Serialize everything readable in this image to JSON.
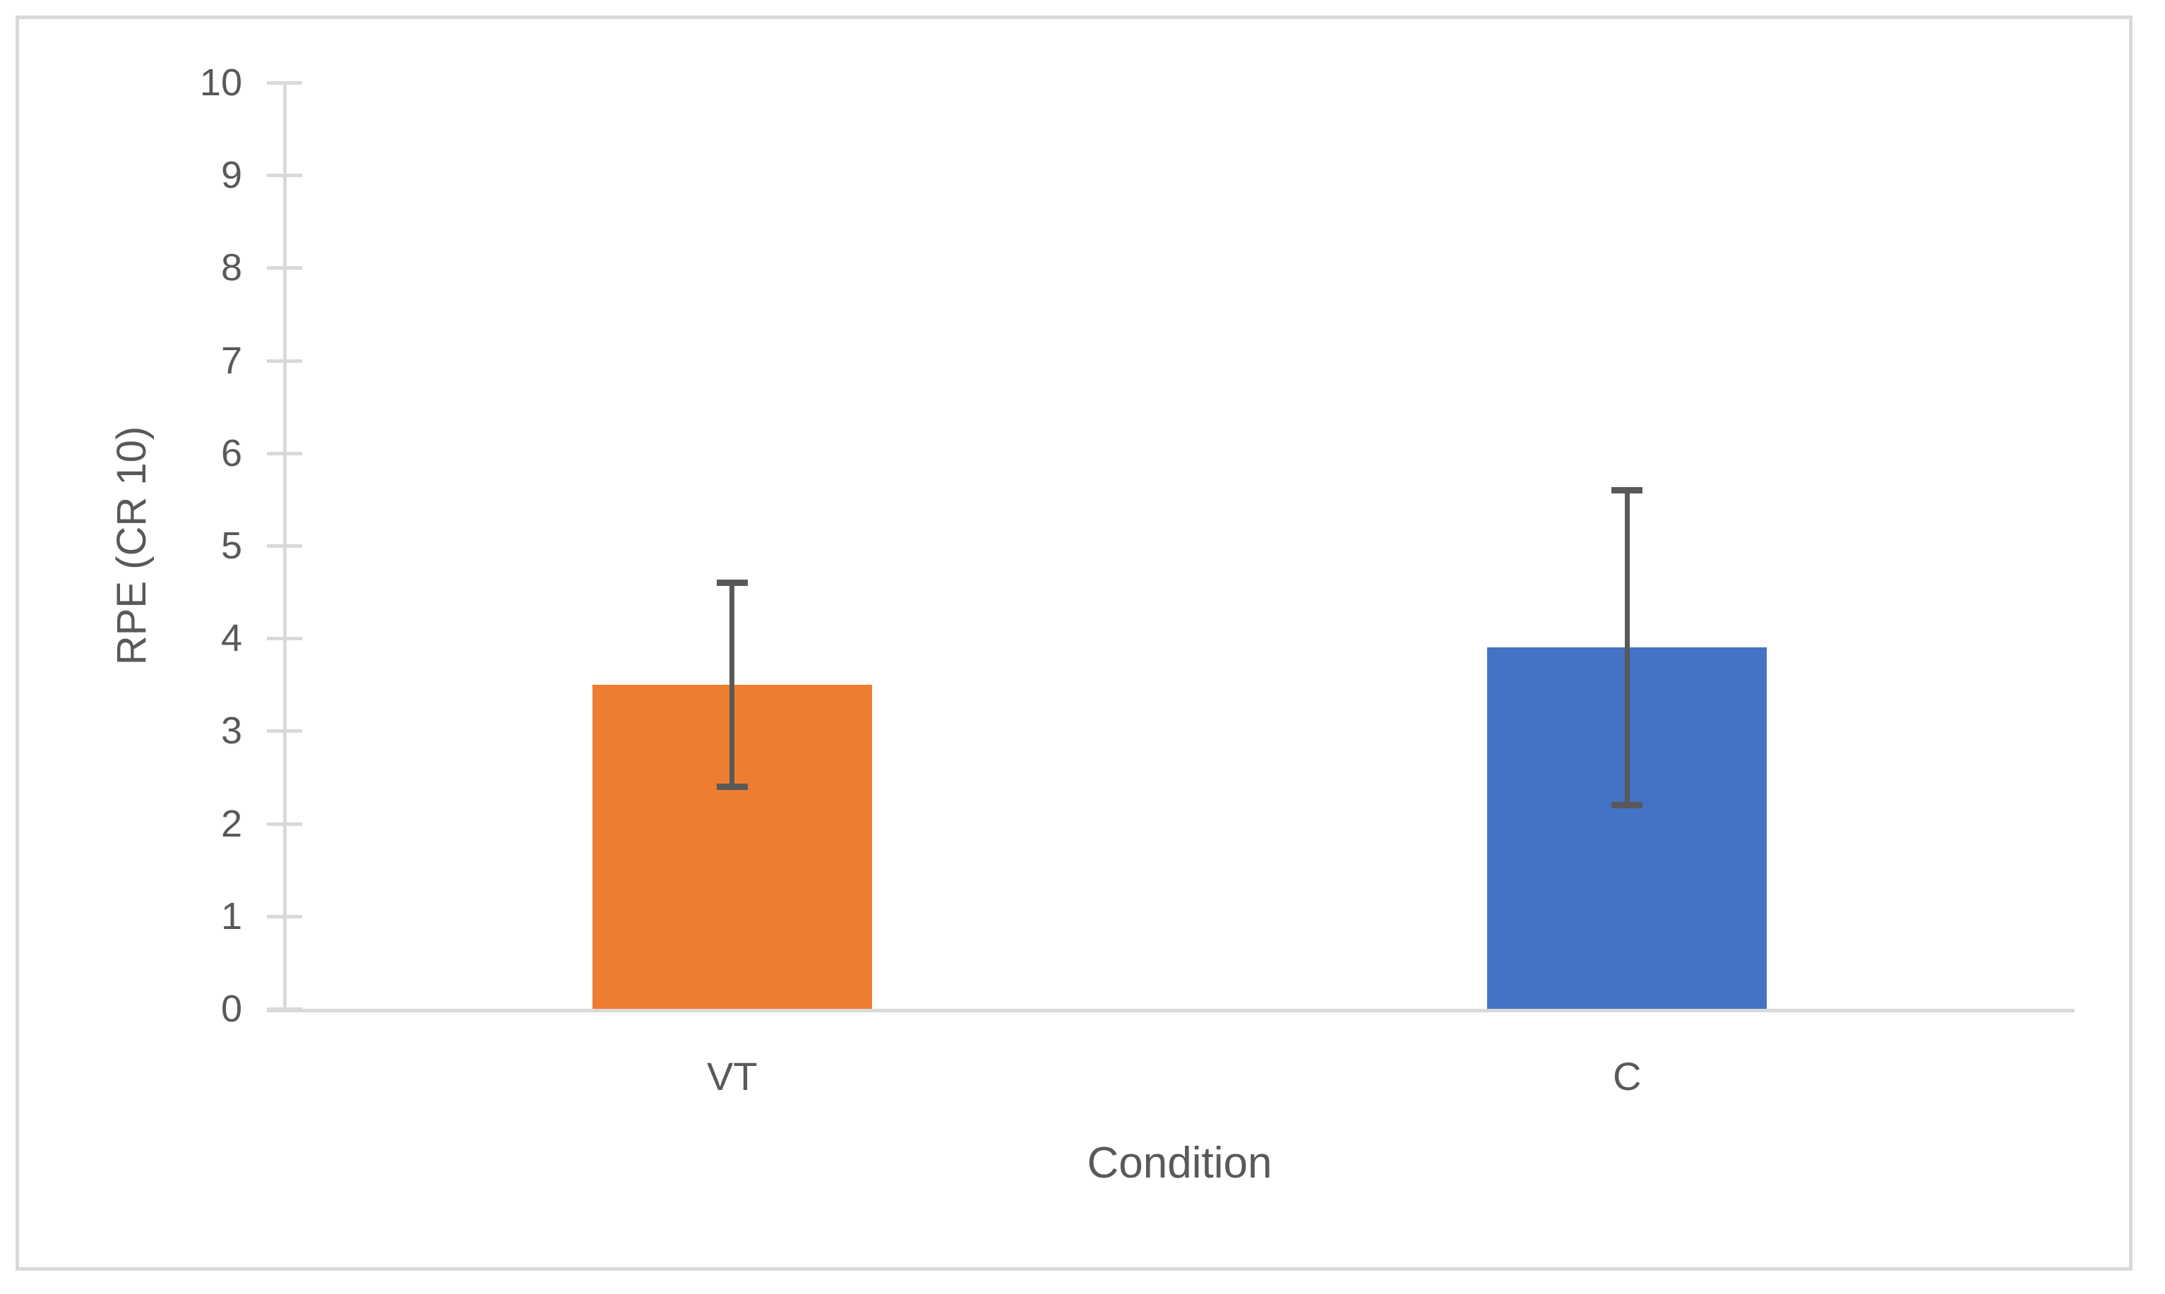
{
  "chart_data": {
    "type": "bar",
    "categories": [
      "VT",
      "C"
    ],
    "values": [
      3.5,
      3.9
    ],
    "series_colors": [
      "#ED7D31",
      "#4472C4"
    ],
    "error_bars": {
      "upper": [
        4.6,
        5.6
      ],
      "lower": [
        2.4,
        2.2
      ]
    },
    "title": "",
    "xlabel": "Condition",
    "ylabel": "RPE (CR 10)",
    "ylim": [
      0,
      10
    ],
    "yticks": [
      0,
      1,
      2,
      3,
      4,
      5,
      6,
      7,
      8,
      9,
      10
    ],
    "grid": "off",
    "legend": "none",
    "axis_color": "#D9D9D9",
    "text_color": "#595959",
    "error_bar_color": "#595959",
    "background": "#FFFFFF"
  }
}
